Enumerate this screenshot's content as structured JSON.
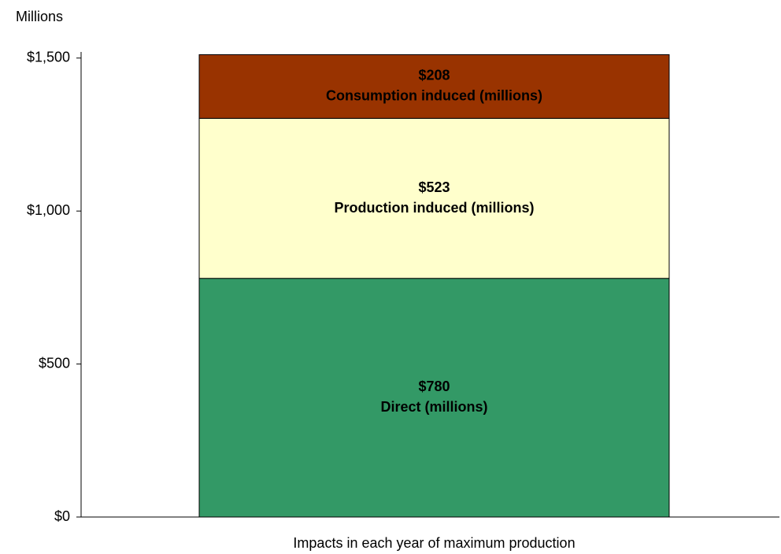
{
  "chart_data": {
    "type": "stacked_bar",
    "y_axis_label": "Millions",
    "categories": [
      "Impacts in each year of maximum production"
    ],
    "series": [
      {
        "name": "Direct (millions)",
        "color": "#339966",
        "values": [
          780
        ],
        "value_labels": [
          "$780"
        ]
      },
      {
        "name": "Production induced (millions)",
        "color": "#ffffcc",
        "values": [
          523
        ],
        "value_labels": [
          "$523"
        ]
      },
      {
        "name": "Consumption induced (millions)",
        "color": "#993300",
        "values": [
          208
        ],
        "value_labels": [
          "$208"
        ]
      }
    ],
    "ylim": [
      0,
      1520
    ],
    "yticks": [
      {
        "value": 0,
        "label": "$0"
      },
      {
        "value": 500,
        "label": "$500"
      },
      {
        "value": 1000,
        "label": "$1,000"
      },
      {
        "value": 1500,
        "label": "$1,500"
      }
    ],
    "grid": false
  }
}
